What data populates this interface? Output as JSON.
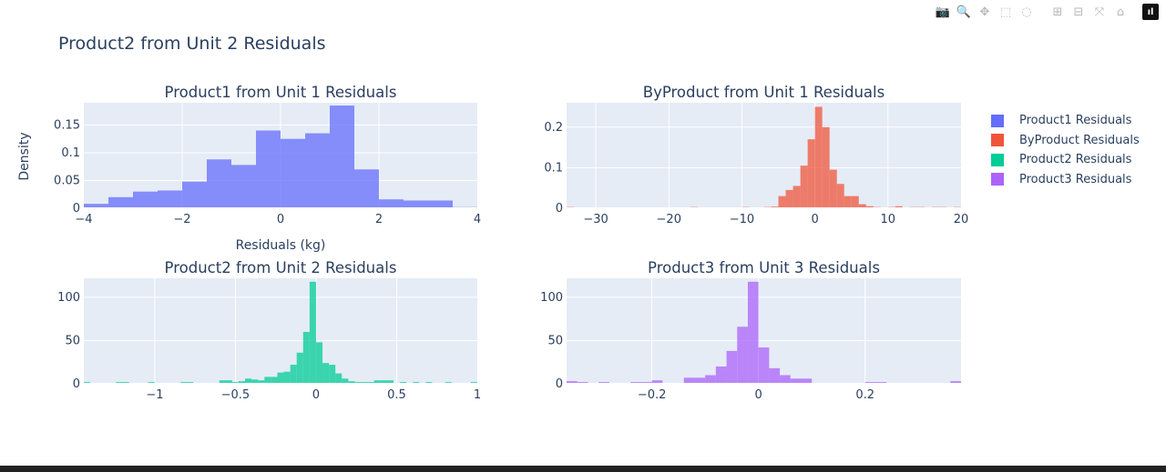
{
  "title": "Product2 from Unit 2 Residuals",
  "toolbar": {
    "items": [
      {
        "name": "download-plot-button",
        "glyph": "📷"
      },
      {
        "name": "zoom-button",
        "glyph": "🔍"
      },
      {
        "name": "pan-button",
        "glyph": "✥"
      },
      {
        "name": "box-select-button",
        "glyph": "⬚"
      },
      {
        "name": "lasso-select-button",
        "glyph": "◌"
      },
      {
        "name": "zoom-in-button",
        "glyph": "⊞"
      },
      {
        "name": "zoom-out-button",
        "glyph": "⊟"
      },
      {
        "name": "autoscale-button",
        "glyph": "⤧"
      },
      {
        "name": "reset-axes-button",
        "glyph": "⌂"
      }
    ],
    "logo": "ıl"
  },
  "legend": [
    {
      "label": "Product1 Residuals",
      "color": "#636efa"
    },
    {
      "label": "ByProduct Residuals",
      "color": "#ef553b"
    },
    {
      "label": "Product2 Residuals",
      "color": "#00cc96"
    },
    {
      "label": "Product3 Residuals",
      "color": "#ab63fa"
    }
  ],
  "chart_data": [
    {
      "type": "bar",
      "title": "Product1 from Unit 1 Residuals",
      "xlabel": "Residuals (kg)",
      "ylabel": "Density",
      "color": "#636efa",
      "xlim": [
        -4,
        4
      ],
      "ylim": [
        0,
        0.19
      ],
      "xticks": [
        -4,
        -2,
        0,
        2,
        4
      ],
      "xtick_labels": [
        "−4",
        "−2",
        "0",
        "2",
        "4"
      ],
      "yticks": [
        0,
        0.05,
        0.1,
        0.15
      ],
      "ytick_labels": [
        "0",
        "0.05",
        "0.1",
        "0.15"
      ],
      "bin_edges": [
        -4,
        -3.5,
        -3,
        -2.5,
        -2,
        -1.5,
        -1,
        -0.5,
        0,
        0.5,
        1,
        1.5,
        2,
        2.5,
        3,
        3.5,
        4
      ],
      "values": [
        0.008,
        0.02,
        0.03,
        0.032,
        0.048,
        0.088,
        0.078,
        0.14,
        0.125,
        0.135,
        0.185,
        0.07,
        0.016,
        0.014,
        0.014,
        0.002
      ]
    },
    {
      "type": "bar",
      "title": "ByProduct from Unit 1 Residuals",
      "xlabel": "",
      "ylabel": "",
      "color": "#ef553b",
      "xlim": [
        -34,
        20
      ],
      "ylim": [
        0,
        0.26
      ],
      "xticks": [
        -30,
        -20,
        -10,
        0,
        10,
        20
      ],
      "xtick_labels": [
        "−30",
        "−20",
        "−10",
        "0",
        "10",
        "20"
      ],
      "yticks": [
        0,
        0.1,
        0.2
      ],
      "ytick_labels": [
        "0",
        "0.1",
        "0.2"
      ],
      "bin_edges": [
        -34,
        -33,
        -17,
        -16,
        -10,
        -9,
        -7,
        -6,
        -5,
        -4,
        -3,
        -2,
        -1,
        0,
        1,
        2,
        3,
        4,
        5,
        6,
        7,
        8,
        9,
        10,
        11,
        12,
        13,
        15,
        16,
        18,
        19,
        20
      ],
      "values": [
        0.003,
        0,
        0.003,
        0,
        0.003,
        0,
        0.003,
        0.004,
        0.03,
        0.045,
        0.055,
        0.105,
        0.17,
        0.25,
        0.2,
        0.095,
        0.06,
        0.03,
        0.03,
        0.01,
        0.005,
        0.003,
        0,
        0.003,
        0.005,
        0,
        0.003,
        0,
        0.003,
        0,
        0.003
      ]
    },
    {
      "type": "bar",
      "title": "Product2 from Unit 2 Residuals",
      "xlabel": "",
      "ylabel": "",
      "color": "#00cc96",
      "xlim": [
        -1.44,
        1
      ],
      "ylim": [
        0,
        122
      ],
      "xticks": [
        -1,
        -0.5,
        0,
        0.5,
        1
      ],
      "xtick_labels": [
        "−1",
        "−0.5",
        "0",
        "0.5",
        "1"
      ],
      "yticks": [
        0,
        50,
        100
      ],
      "ytick_labels": [
        "0",
        "50",
        "100"
      ],
      "bin_edges": [
        -1.44,
        -1.4,
        -1.24,
        -1.16,
        -1.04,
        -1,
        -0.84,
        -0.76,
        -0.6,
        -0.52,
        -0.48,
        -0.44,
        -0.4,
        -0.36,
        -0.32,
        -0.28,
        -0.24,
        -0.2,
        -0.16,
        -0.12,
        -0.08,
        -0.04,
        0,
        0.04,
        0.08,
        0.12,
        0.16,
        0.2,
        0.24,
        0.28,
        0.32,
        0.36,
        0.4,
        0.44,
        0.48,
        0.52,
        0.56,
        0.6,
        0.64,
        0.68,
        0.72,
        0.8,
        0.84,
        0.96,
        1
      ],
      "values": [
        2,
        0,
        2,
        0,
        2,
        0,
        2,
        0,
        4,
        2,
        3,
        6,
        5,
        4,
        8,
        8,
        13,
        14,
        22,
        36,
        60,
        118,
        48,
        24,
        22,
        12,
        6,
        3,
        2,
        2,
        2,
        4,
        4,
        4,
        0,
        2,
        0,
        2,
        0,
        2,
        0,
        2,
        0,
        2
      ]
    },
    {
      "type": "bar",
      "title": "Product3 from Unit 3 Residuals",
      "xlabel": "",
      "ylabel": "",
      "color": "#ab63fa",
      "xlim": [
        -0.36,
        0.38
      ],
      "ylim": [
        0,
        122
      ],
      "xticks": [
        -0.2,
        0,
        0.2
      ],
      "xtick_labels": [
        "−0.2",
        "0",
        "0.2"
      ],
      "yticks": [
        0,
        50,
        100
      ],
      "ytick_labels": [
        "0",
        "50",
        "100"
      ],
      "bin_edges": [
        -0.36,
        -0.34,
        -0.32,
        -0.3,
        -0.28,
        -0.24,
        -0.2,
        -0.18,
        -0.14,
        -0.12,
        -0.1,
        -0.08,
        -0.06,
        -0.04,
        -0.02,
        0,
        0.02,
        0.04,
        0.06,
        0.08,
        0.1,
        0.12,
        0.14,
        0.16,
        0.18,
        0.2,
        0.22,
        0.24,
        0.26,
        0.28,
        0.3,
        0.32,
        0.34,
        0.36,
        0.38
      ],
      "values": [
        3,
        2,
        0,
        2,
        0,
        2,
        4,
        0,
        7,
        7,
        10,
        20,
        38,
        66,
        118,
        42,
        18,
        10,
        6,
        6,
        1,
        0,
        0,
        0,
        0,
        2,
        2,
        0,
        0,
        0,
        0,
        0,
        0,
        3
      ]
    }
  ]
}
